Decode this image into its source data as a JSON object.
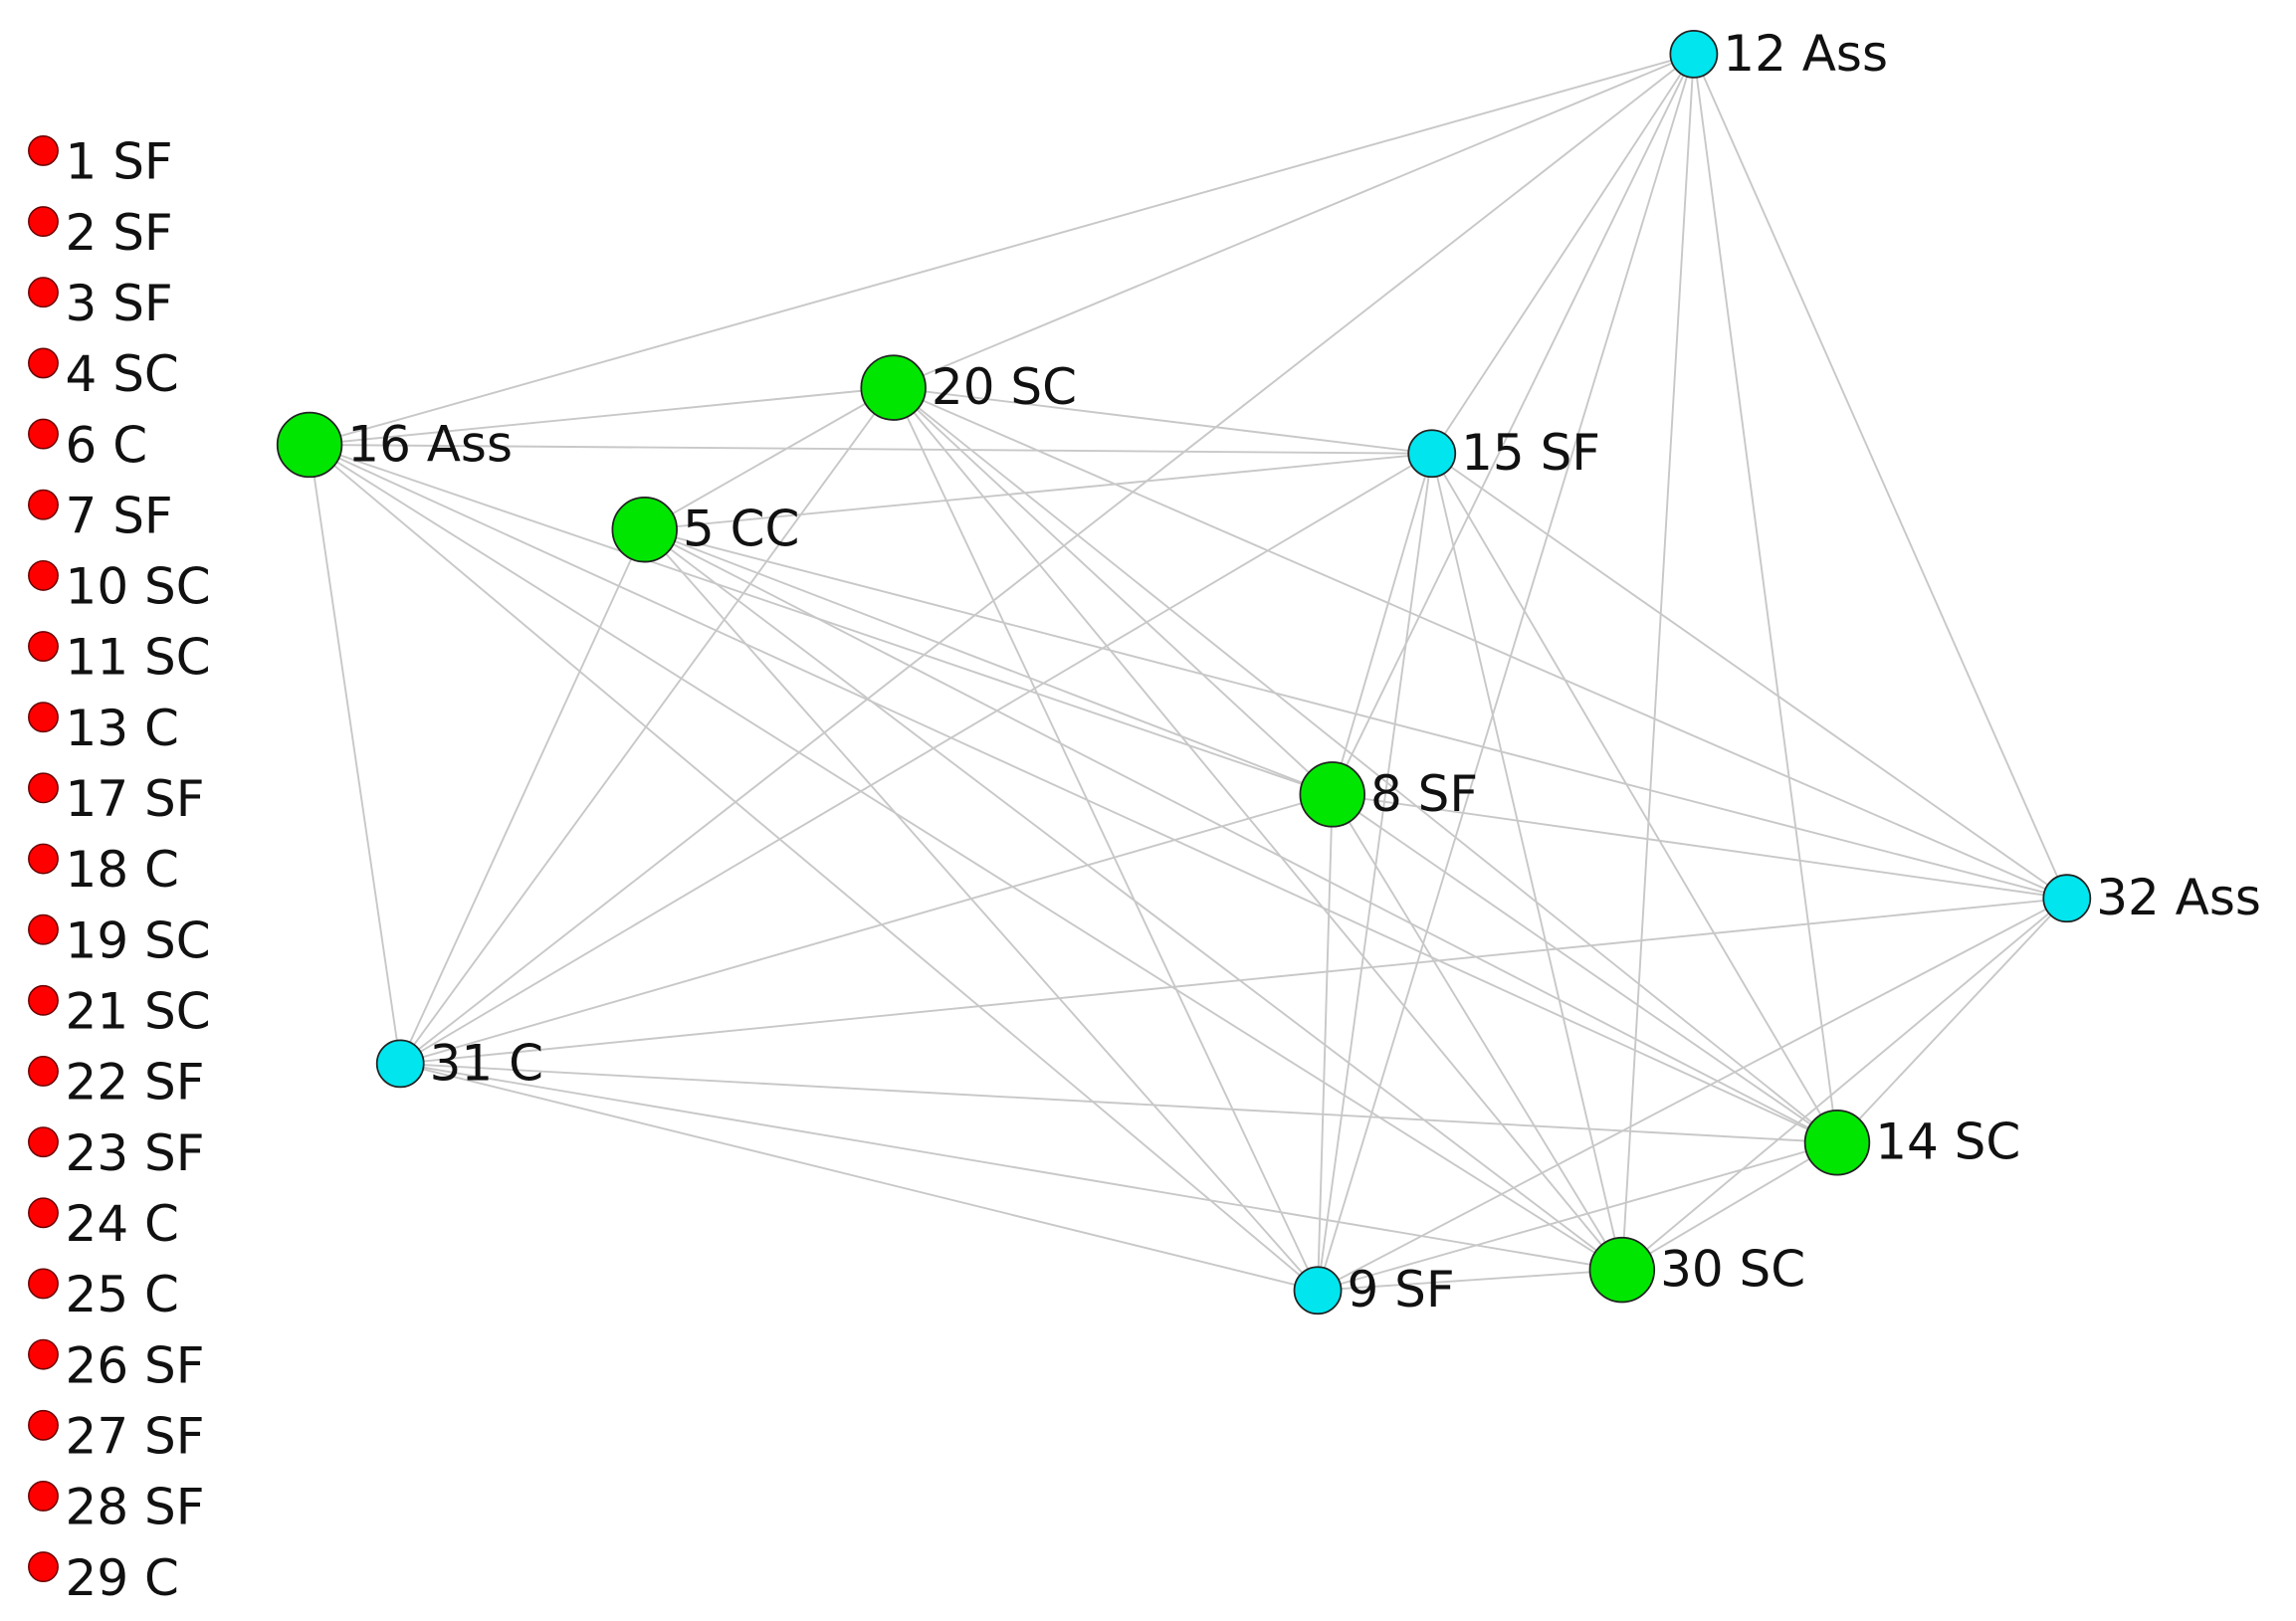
{
  "isolates": [
    {
      "label": "1 SF",
      "color": "#ff0000"
    },
    {
      "label": "2 SF",
      "color": "#ff0000"
    },
    {
      "label": "3 SF",
      "color": "#ff0000"
    },
    {
      "label": "4 SC",
      "color": "#ff0000"
    },
    {
      "label": "6 C",
      "color": "#ff0000"
    },
    {
      "label": "7 SF",
      "color": "#ff0000"
    },
    {
      "label": "10 SC",
      "color": "#ff0000"
    },
    {
      "label": "11 SC",
      "color": "#ff0000"
    },
    {
      "label": "13 C",
      "color": "#ff0000"
    },
    {
      "label": "17 SF",
      "color": "#ff0000"
    },
    {
      "label": "18 C",
      "color": "#ff0000"
    },
    {
      "label": "19 SC",
      "color": "#ff0000"
    },
    {
      "label": "21 SC",
      "color": "#ff0000"
    },
    {
      "label": "22 SF",
      "color": "#ff0000"
    },
    {
      "label": "23 SF",
      "color": "#ff0000"
    },
    {
      "label": "24 C",
      "color": "#ff0000"
    },
    {
      "label": "25 C",
      "color": "#ff0000"
    },
    {
      "label": "26 SF",
      "color": "#ff0000"
    },
    {
      "label": "27 SF",
      "color": "#ff0000"
    },
    {
      "label": "28 SF",
      "color": "#ff0000"
    },
    {
      "label": "29 C",
      "color": "#ff0000"
    }
  ],
  "nodes": [
    {
      "label": "12 Ass",
      "color": "#00e5ee"
    },
    {
      "label": "16 Ass",
      "color": "#00e600"
    },
    {
      "label": "20 SC",
      "color": "#00e600"
    },
    {
      "label": "15 SF",
      "color": "#00e5ee"
    },
    {
      "label": "5 CC",
      "color": "#00e600"
    },
    {
      "label": "8 SF",
      "color": "#00e600"
    },
    {
      "label": "32 Ass",
      "color": "#00e5ee"
    },
    {
      "label": "31 C",
      "color": "#00e5ee"
    },
    {
      "label": "14 SC",
      "color": "#00e600"
    },
    {
      "label": "30 SC",
      "color": "#00e600"
    },
    {
      "label": "9 SF",
      "color": "#00e5ee"
    }
  ]
}
